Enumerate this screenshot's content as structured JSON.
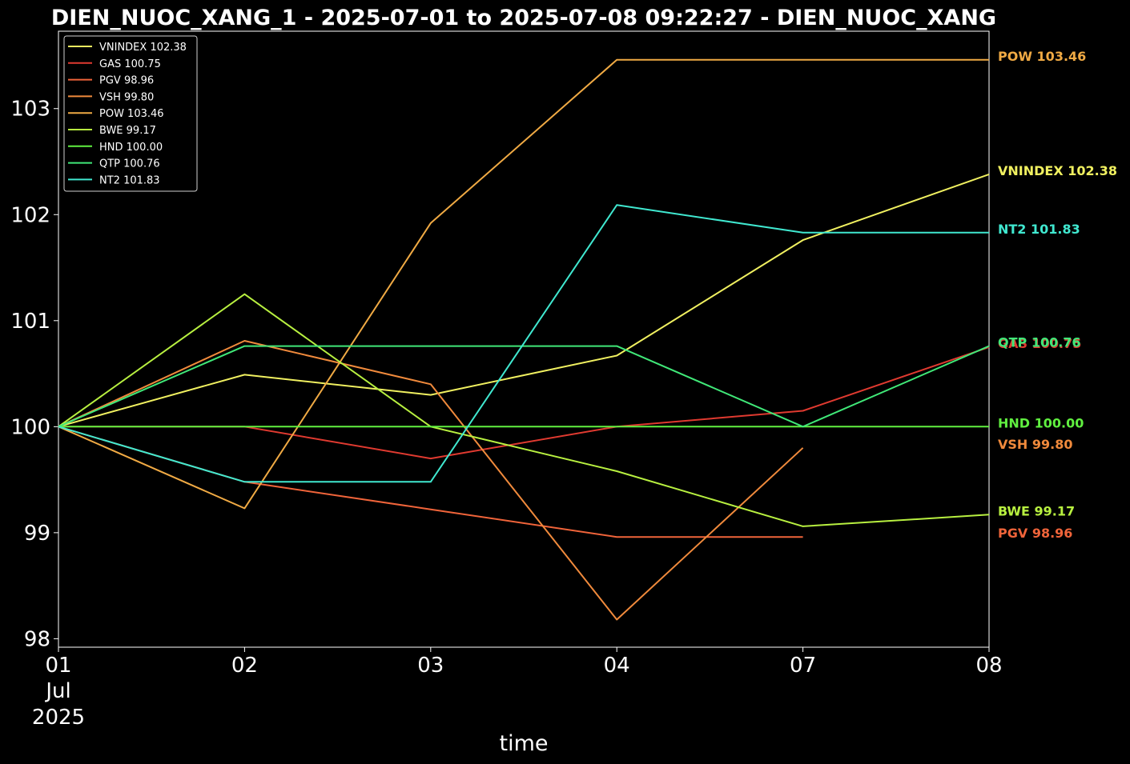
{
  "chart_data": {
    "type": "line",
    "title": "DIEN_NUOC_XANG_1 - 2025-07-01 to 2025-07-08 09:22:27 - DIEN_NUOC_XANG",
    "xlabel": "time",
    "ylabel": "",
    "x": [
      "01",
      "02",
      "03",
      "04",
      "07",
      "08"
    ],
    "x_sublabels": [
      "Jul",
      "2025"
    ],
    "ylim": [
      97.92,
      103.73
    ],
    "yticks": [
      98,
      99,
      100,
      101,
      102,
      103
    ],
    "grid": false,
    "legend_position": "top-left",
    "background": "#000000",
    "series": [
      {
        "name": "VNINDEX",
        "label": "VNINDEX 102.38",
        "color": "#f0f060",
        "values": [
          100.0,
          100.49,
          100.3,
          100.67,
          101.76,
          102.38
        ]
      },
      {
        "name": "GAS",
        "label": "GAS 100.75",
        "color": "#e03a30",
        "values": [
          100.0,
          100.0,
          99.7,
          100.0,
          100.15,
          100.75
        ]
      },
      {
        "name": "PGV",
        "label": "PGV 98.96",
        "color": "#f0643a",
        "values": [
          100.0,
          99.48,
          99.22,
          98.96,
          98.96,
          null
        ]
      },
      {
        "name": "VSH",
        "label": "VSH 99.80",
        "color": "#f08a3c",
        "values": [
          100.0,
          100.81,
          100.4,
          98.18,
          99.8,
          null
        ]
      },
      {
        "name": "POW",
        "label": "POW 103.46",
        "color": "#f0aa44",
        "values": [
          100.0,
          99.23,
          101.92,
          103.46,
          103.46,
          103.46
        ]
      },
      {
        "name": "BWE",
        "label": "BWE 99.17",
        "color": "#b8f040",
        "values": [
          100.0,
          101.25,
          100.0,
          99.58,
          99.06,
          99.17
        ]
      },
      {
        "name": "HND",
        "label": "HND 100.00",
        "color": "#60f040",
        "values": [
          100.0,
          100.0,
          100.0,
          100.0,
          100.0,
          100.0
        ]
      },
      {
        "name": "QTP",
        "label": "QTP 100.76",
        "color": "#40e878",
        "values": [
          100.0,
          100.76,
          100.76,
          100.76,
          100.0,
          100.76
        ]
      },
      {
        "name": "NT2",
        "label": "NT2 101.83",
        "color": "#40e8d0",
        "values": [
          100.0,
          99.48,
          99.48,
          102.09,
          101.83,
          101.83
        ]
      }
    ],
    "end_labels": [
      {
        "text": "POW 103.46",
        "color": "#f0aa44",
        "at": 103.46
      },
      {
        "text": "VNINDEX 102.38",
        "color": "#f0f060",
        "at": 102.38
      },
      {
        "text": "NT2 101.83",
        "color": "#40e8d0",
        "at": 101.83
      },
      {
        "text": "GAS 100.75",
        "color": "#e03a30",
        "at": 100.75
      },
      {
        "text": "QTP 100.76",
        "color": "#40e878",
        "at": 100.76
      },
      {
        "text": "HND 100.00",
        "color": "#60f040",
        "at": 100.0
      },
      {
        "text": "VSH 99.80",
        "color": "#f08a3c",
        "at": 99.8
      },
      {
        "text": "BWE 99.17",
        "color": "#b8f040",
        "at": 99.17
      },
      {
        "text": "PGV 98.96",
        "color": "#f0643a",
        "at": 98.96
      }
    ]
  }
}
